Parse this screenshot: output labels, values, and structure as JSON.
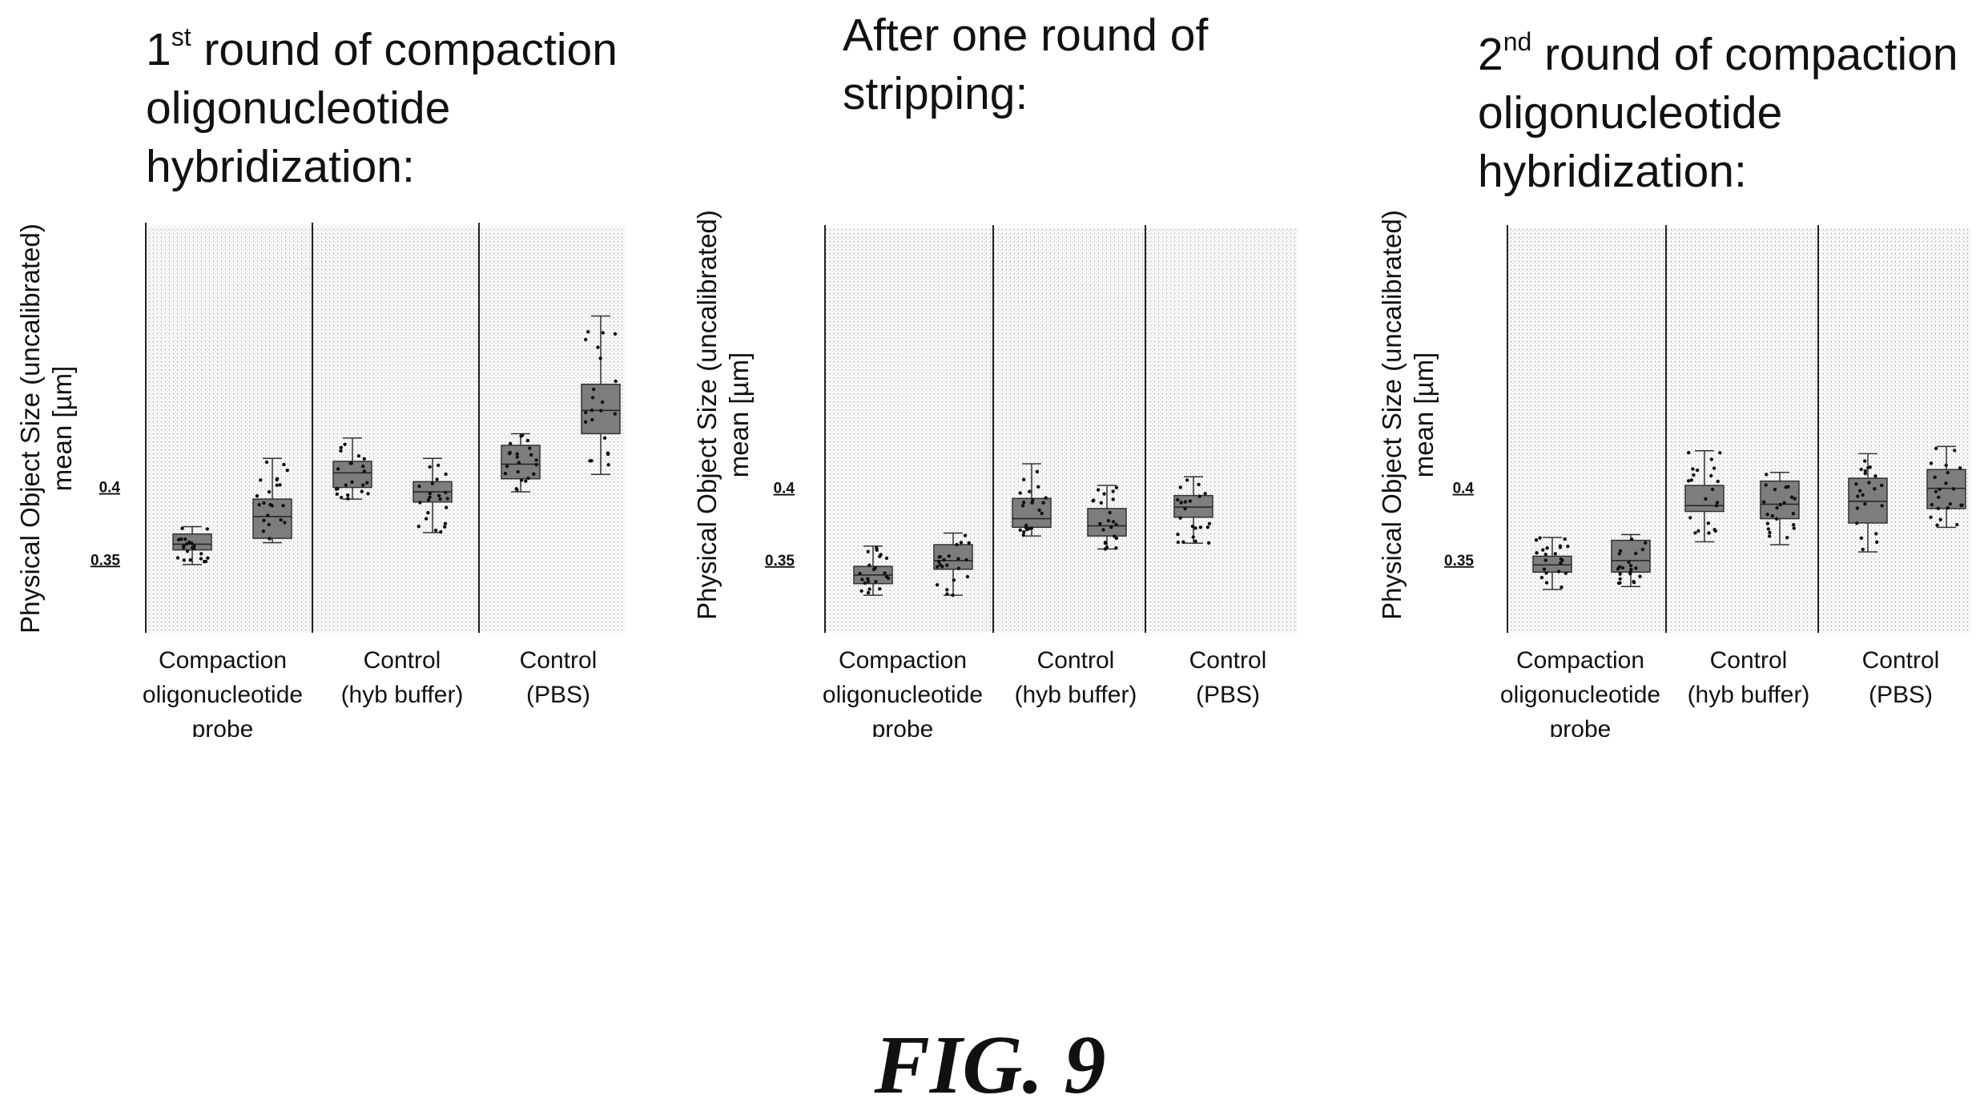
{
  "figure_label": "FIG. 9",
  "chart_data": [
    {
      "type": "box",
      "title_prefix": "1",
      "title_sup": "st",
      "title_rest": " round of compaction\noligonucleotide\nhybridization:",
      "ylabel_lines": [
        "Physical Object Size (uncalibrated)",
        "mean [µm]"
      ],
      "yticks": [
        {
          "value": 0.4,
          "label": "0.4"
        },
        {
          "value": 0.35,
          "label": "0.35"
        }
      ],
      "ylim": [
        0.3,
        0.58
      ],
      "grid": false,
      "groups": [
        {
          "label_lines": [
            "Compaction",
            "oligonucleotide",
            "probe"
          ],
          "boxes": [
            {
              "q1": 0.357,
              "median": 0.361,
              "q3": 0.368,
              "whisker_low": 0.347,
              "whisker_high": 0.373
            },
            {
              "q1": 0.365,
              "median": 0.38,
              "q3": 0.392,
              "whisker_low": 0.362,
              "whisker_high": 0.42
            }
          ]
        },
        {
          "label_lines": [
            "Control",
            "(hyb buffer)"
          ],
          "boxes": [
            {
              "q1": 0.4,
              "median": 0.41,
              "q3": 0.418,
              "whisker_low": 0.392,
              "whisker_high": 0.434
            },
            {
              "q1": 0.39,
              "median": 0.397,
              "q3": 0.404,
              "whisker_low": 0.369,
              "whisker_high": 0.42
            }
          ]
        },
        {
          "label_lines": [
            "Control",
            "(PBS)"
          ],
          "boxes": [
            {
              "q1": 0.406,
              "median": 0.416,
              "q3": 0.429,
              "whisker_low": 0.397,
              "whisker_high": 0.437
            },
            {
              "q1": 0.437,
              "median": 0.453,
              "q3": 0.471,
              "whisker_low": 0.409,
              "whisker_high": 0.518
            }
          ]
        }
      ]
    },
    {
      "type": "box",
      "title_prefix": "After one round of\nstripping:",
      "title_sup": "",
      "title_rest": "",
      "ylabel_lines": [
        "Physical Object Size (uncalibrated)",
        "mean [µm]"
      ],
      "yticks": [
        {
          "value": 0.4,
          "label": "0.4"
        },
        {
          "value": 0.35,
          "label": "0.35"
        }
      ],
      "ylim": [
        0.3,
        0.58
      ],
      "grid": false,
      "groups": [
        {
          "label_lines": [
            "Compaction",
            "oligonucleotide",
            "probe"
          ],
          "boxes": [
            {
              "q1": 0.334,
              "median": 0.34,
              "q3": 0.346,
              "whisker_low": 0.326,
              "whisker_high": 0.36
            },
            {
              "q1": 0.344,
              "median": 0.35,
              "q3": 0.361,
              "whisker_low": 0.326,
              "whisker_high": 0.369
            }
          ]
        },
        {
          "label_lines": [
            "Control",
            "(hyb buffer)"
          ],
          "boxes": [
            {
              "q1": 0.373,
              "median": 0.379,
              "q3": 0.393,
              "whisker_low": 0.367,
              "whisker_high": 0.417
            },
            {
              "q1": 0.367,
              "median": 0.374,
              "q3": 0.386,
              "whisker_low": 0.358,
              "whisker_high": 0.402
            }
          ]
        },
        {
          "label_lines": [
            "Control",
            "(PBS)"
          ],
          "boxes": [
            {
              "q1": 0.38,
              "median": 0.387,
              "q3": 0.395,
              "whisker_low": 0.362,
              "whisker_high": 0.408
            }
          ]
        },
        {
          "label_lines": [],
          "boxes": []
        }
      ]
    },
    {
      "type": "box",
      "title_prefix": "2",
      "title_sup": "nd",
      "title_rest": " round of compaction\noligonucleotide\nhybridization:",
      "ylabel_lines": [
        "Physical Object Size (uncalibrated)",
        "mean [µm]"
      ],
      "yticks": [
        {
          "value": 0.4,
          "label": "0.4"
        },
        {
          "value": 0.35,
          "label": "0.35"
        }
      ],
      "ylim": [
        0.3,
        0.58
      ],
      "grid": false,
      "groups": [
        {
          "label_lines": [
            "Compaction",
            "oligonucleotide",
            "probe"
          ],
          "boxes": [
            {
              "q1": 0.342,
              "median": 0.347,
              "q3": 0.353,
              "whisker_low": 0.33,
              "whisker_high": 0.366
            },
            {
              "q1": 0.342,
              "median": 0.35,
              "q3": 0.364,
              "whisker_low": 0.332,
              "whisker_high": 0.368
            }
          ]
        },
        {
          "label_lines": [
            "Control",
            "(hyb buffer)"
          ],
          "boxes": [
            {
              "q1": 0.384,
              "median": 0.388,
              "q3": 0.402,
              "whisker_low": 0.363,
              "whisker_high": 0.426
            },
            {
              "q1": 0.379,
              "median": 0.389,
              "q3": 0.405,
              "whisker_low": 0.361,
              "whisker_high": 0.411
            }
          ]
        },
        {
          "label_lines": [
            "Control",
            "(PBS)"
          ],
          "boxes": [
            {
              "q1": 0.376,
              "median": 0.391,
              "q3": 0.407,
              "whisker_low": 0.356,
              "whisker_high": 0.424
            },
            {
              "q1": 0.386,
              "median": 0.4,
              "q3": 0.413,
              "whisker_low": 0.373,
              "whisker_high": 0.429
            }
          ]
        }
      ]
    }
  ]
}
